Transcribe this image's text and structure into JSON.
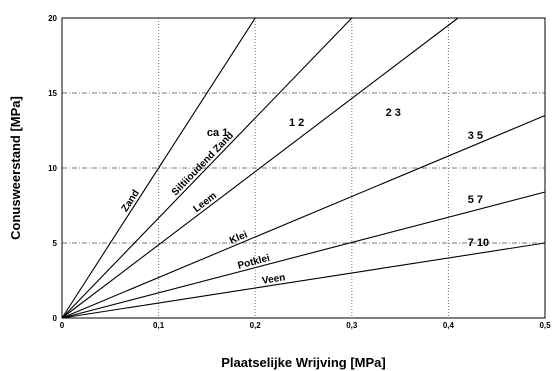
{
  "chart_data": {
    "type": "line",
    "title": "",
    "xlabel": "Plaatselijke Wrijving [MPa]",
    "ylabel": "Conusweerstand  [MPa]",
    "xlim": [
      0,
      0.5
    ],
    "ylim": [
      0,
      20
    ],
    "x_ticks": [
      "0",
      "0,1",
      "0,2",
      "0,3",
      "0,4",
      "0,5"
    ],
    "y_ticks": [
      "0",
      "5",
      "10",
      "15",
      "20"
    ],
    "grid": true,
    "series": [
      {
        "name": "Zand",
        "ratio_label": "ca  1",
        "x": [
          0,
          0.2
        ],
        "y": [
          0,
          20
        ]
      },
      {
        "name": "Siltiioudend Zand",
        "ratio_label": "1   2",
        "x": [
          0,
          0.3
        ],
        "y": [
          0,
          20
        ]
      },
      {
        "name": "Leem",
        "ratio_label": "2   3",
        "x": [
          0,
          0.41
        ],
        "y": [
          0,
          20
        ]
      },
      {
        "name": "Klei",
        "ratio_label": "3   5",
        "x": [
          0,
          0.5
        ],
        "y": [
          0,
          13.5
        ]
      },
      {
        "name": "Potklei",
        "ratio_label": "5   7",
        "x": [
          0,
          0.5
        ],
        "y": [
          0,
          8.4
        ]
      },
      {
        "name": "Veen",
        "ratio_label": "7   10",
        "x": [
          0,
          0.5
        ],
        "y": [
          0,
          5
        ]
      }
    ]
  }
}
